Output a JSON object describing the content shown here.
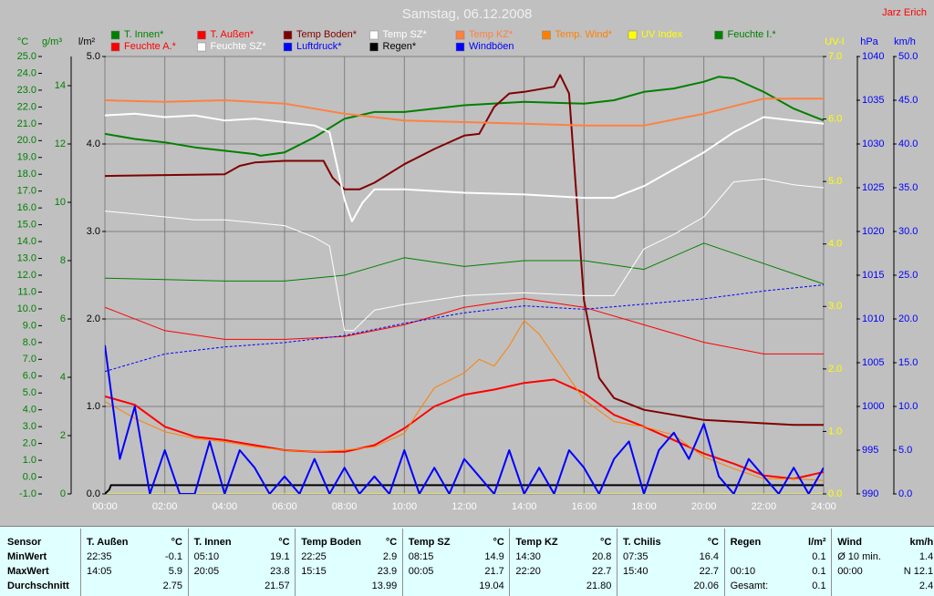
{
  "chart_data": {
    "type": "line",
    "title": "Samstag, 06.12.2008",
    "author": "Jarz Erich",
    "xlim": [
      0,
      24
    ],
    "xticks": [
      {
        "value": 0,
        "label": "00:00"
      },
      {
        "value": 2,
        "label": "02:00"
      },
      {
        "value": 4,
        "label": "04:00"
      },
      {
        "value": 6,
        "label": "06:00"
      },
      {
        "value": 8,
        "label": "08:00"
      },
      {
        "value": 10,
        "label": "10:00"
      },
      {
        "value": 12,
        "label": "12:00"
      },
      {
        "value": 14,
        "label": "14:00"
      },
      {
        "value": 16,
        "label": "16:00"
      },
      {
        "value": 18,
        "label": "18:00"
      },
      {
        "value": 20,
        "label": "20:00"
      },
      {
        "value": 22,
        "label": "22:00"
      },
      {
        "value": 24,
        "label": "24:00"
      }
    ],
    "grid": true,
    "y_axes": [
      {
        "label": "°C",
        "color": "#008000",
        "lim": [
          -1,
          25
        ],
        "ticks": [
          {
            "value": -1,
            "label": "-1.0"
          },
          {
            "value": 0,
            "label": "0.0"
          },
          {
            "value": 1,
            "label": "1.0"
          },
          {
            "value": 2,
            "label": "2.0"
          },
          {
            "value": 3,
            "label": "3.0"
          },
          {
            "value": 4,
            "label": "4.0"
          },
          {
            "value": 5,
            "label": "5.0"
          },
          {
            "value": 6,
            "label": "6.0"
          },
          {
            "value": 7,
            "label": "7.0"
          },
          {
            "value": 8,
            "label": "8.0"
          },
          {
            "value": 9,
            "label": "9.0"
          },
          {
            "value": 10,
            "label": "10.0"
          },
          {
            "value": 11,
            "label": "11.0"
          },
          {
            "value": 12,
            "label": "12.0"
          },
          {
            "value": 13,
            "label": "13.0"
          },
          {
            "value": 14,
            "label": "14.0"
          },
          {
            "value": 15,
            "label": "15.0"
          },
          {
            "value": 16,
            "label": "16.0"
          },
          {
            "value": 17,
            "label": "17.0"
          },
          {
            "value": 18,
            "label": "18.0"
          },
          {
            "value": 19,
            "label": "19.0"
          },
          {
            "value": 20,
            "label": "20.0"
          },
          {
            "value": 21,
            "label": "21.0"
          },
          {
            "value": 22,
            "label": "22.0"
          },
          {
            "value": 23,
            "label": "23.0"
          },
          {
            "value": 24,
            "label": "24.0"
          },
          {
            "value": 25,
            "label": "25.0"
          }
        ]
      },
      {
        "label": "g/m³",
        "color": "#008000",
        "lim": [
          0,
          15
        ],
        "ticks": [
          0,
          2,
          4,
          6,
          8,
          10,
          12,
          14
        ]
      },
      {
        "label": "l/m²",
        "color": "#000000",
        "lim": [
          0,
          5
        ],
        "grid": true,
        "ticks": [
          {
            "value": 0,
            "label": "0.0"
          },
          {
            "value": 1,
            "label": "1.0"
          },
          {
            "value": 2,
            "label": "2.0"
          },
          {
            "value": 3,
            "label": "3.0"
          },
          {
            "value": 4,
            "label": "4.0"
          },
          {
            "value": 5,
            "label": "5.0"
          }
        ]
      },
      {
        "label": "UV-I",
        "color": "#ffff00",
        "lim": [
          0,
          7
        ],
        "ticks": [
          {
            "value": 0,
            "label": "0.0"
          },
          {
            "value": 1,
            "label": "1.0"
          },
          {
            "value": 2,
            "label": "2.0"
          },
          {
            "value": 3,
            "label": "3.0"
          },
          {
            "value": 4,
            "label": "4.0"
          },
          {
            "value": 5,
            "label": "5.0"
          },
          {
            "value": 6,
            "label": "6.0"
          },
          {
            "value": 7,
            "label": "7.0"
          }
        ]
      },
      {
        "label": "hPa",
        "color": "#0000ff",
        "lim": [
          990,
          1040
        ],
        "ticks": [
          990,
          995,
          1000,
          1005,
          1010,
          1015,
          1020,
          1025,
          1030,
          1035,
          1040
        ]
      },
      {
        "label": "km/h",
        "color": "#0000ff",
        "lim": [
          0,
          50
        ],
        "ticks": [
          {
            "value": 0,
            "label": "0.0"
          },
          {
            "value": 5,
            "label": "5.0"
          },
          {
            "value": 10,
            "label": "10.0"
          },
          {
            "value": 15,
            "label": "15.0"
          },
          {
            "value": 20,
            "label": "20.0"
          },
          {
            "value": 25,
            "label": "25.0"
          },
          {
            "value": 30,
            "label": "30.0"
          },
          {
            "value": 35,
            "label": "35.0"
          },
          {
            "value": 40,
            "label": "40.0"
          },
          {
            "value": 45,
            "label": "45.0"
          },
          {
            "value": 50,
            "label": "50.0"
          }
        ]
      }
    ],
    "series": [
      {
        "name": "T. Innen*",
        "color": "#008000",
        "axis": "°C",
        "thick": true,
        "x": [
          0,
          1,
          2,
          3,
          4,
          5,
          5.2,
          6,
          7,
          8,
          9,
          10,
          12,
          14,
          16,
          17,
          18,
          19,
          20,
          20.5,
          21,
          22,
          23,
          24
        ],
        "values": [
          20.4,
          20.1,
          19.9,
          19.6,
          19.4,
          19.2,
          19.1,
          19.3,
          20.2,
          21.3,
          21.7,
          21.7,
          22.1,
          22.3,
          22.2,
          22.4,
          22.9,
          23.1,
          23.5,
          23.8,
          23.7,
          22.9,
          21.9,
          21.2
        ]
      },
      {
        "name": "T. Außen*",
        "color": "#ff0000",
        "axis": "°C",
        "thick": true,
        "x": [
          0,
          1,
          2,
          3,
          4,
          5,
          6,
          7,
          8,
          9,
          10,
          11,
          12,
          13,
          14,
          15,
          16,
          17,
          18,
          19,
          20,
          21,
          22,
          23,
          24
        ],
        "values": [
          4.8,
          4.3,
          3.0,
          2.4,
          2.2,
          1.9,
          1.6,
          1.5,
          1.5,
          1.9,
          2.9,
          4.2,
          4.9,
          5.2,
          5.6,
          5.8,
          5.0,
          3.7,
          3.0,
          2.2,
          1.4,
          0.8,
          0.1,
          -0.1,
          0.3
        ]
      },
      {
        "name": "Temp Boden*",
        "color": "#800000",
        "axis": "°C",
        "thick": true,
        "x": [
          0,
          4,
          4.5,
          5,
          6,
          7.3,
          7.6,
          8,
          8.5,
          9,
          10,
          11,
          12,
          12.5,
          13,
          13.5,
          14,
          15,
          15.2,
          15.5,
          16,
          16.5,
          17,
          18,
          19,
          20,
          21,
          22,
          23,
          24
        ],
        "values": [
          17.9,
          18.0,
          18.5,
          18.7,
          18.8,
          18.8,
          17.8,
          17.1,
          17.1,
          17.5,
          18.6,
          19.5,
          20.3,
          20.4,
          22.0,
          22.8,
          22.9,
          23.2,
          23.9,
          22.8,
          10.5,
          5.9,
          4.7,
          4.0,
          3.7,
          3.4,
          3.3,
          3.2,
          3.1,
          3.1
        ]
      },
      {
        "name": "Temp SZ*",
        "color": "#ffffff",
        "axis": "°C",
        "thick": true,
        "x": [
          0,
          1,
          2,
          3,
          4,
          5,
          6,
          7,
          7.5,
          8,
          8.25,
          8.6,
          9,
          10,
          12,
          14,
          16,
          17,
          18,
          19,
          20,
          21,
          22,
          23,
          24
        ],
        "values": [
          21.5,
          21.6,
          21.4,
          21.5,
          21.2,
          21.3,
          21.1,
          20.9,
          20.5,
          16.5,
          15.2,
          16.3,
          17.1,
          17.1,
          16.9,
          16.8,
          16.6,
          16.6,
          17.3,
          18.3,
          19.3,
          20.5,
          21.4,
          21.2,
          21.0
        ]
      },
      {
        "name": "Temp KZ*",
        "color": "#ff8040",
        "axis": "°C",
        "thick": true,
        "x": [
          0,
          2,
          4,
          6,
          8,
          10,
          12,
          14,
          16,
          18,
          20,
          22,
          24
        ],
        "values": [
          22.4,
          22.3,
          22.4,
          22.2,
          21.6,
          21.2,
          21.1,
          21.0,
          20.9,
          20.9,
          21.6,
          22.5,
          22.5
        ]
      },
      {
        "name": "Temp. Wind*",
        "color": "#ff8000",
        "axis": "°C",
        "thick": false,
        "x": [
          0,
          1,
          2,
          3,
          4,
          5,
          6,
          7,
          8,
          9,
          10,
          10.5,
          11,
          12,
          12.5,
          13,
          13.5,
          14,
          14.5,
          15,
          16,
          17,
          18,
          19,
          20,
          21,
          22,
          23,
          24
        ],
        "values": [
          4.5,
          3.5,
          2.7,
          2.3,
          2.1,
          1.8,
          1.6,
          1.5,
          1.6,
          1.8,
          2.6,
          4.0,
          5.3,
          6.2,
          7.0,
          6.6,
          7.8,
          9.3,
          8.5,
          7.2,
          4.6,
          3.3,
          3.0,
          2.5,
          1.2,
          0.5,
          -0.1,
          -0.1,
          -0.2
        ]
      },
      {
        "name": "UV Index",
        "color": "#ffff00",
        "axis": "UV-I",
        "thick": false,
        "x": [
          0,
          24
        ],
        "values": [
          0,
          0
        ]
      },
      {
        "name": "Feuchte I.*",
        "color": "#008000",
        "axis": "g/m³",
        "thick": false,
        "x": [
          0,
          2,
          4,
          6,
          8,
          10,
          12,
          14,
          16,
          18,
          20,
          22,
          24
        ],
        "values": [
          7.4,
          7.35,
          7.3,
          7.3,
          7.5,
          8.1,
          7.8,
          8.0,
          8.0,
          7.7,
          8.6,
          7.9,
          7.2
        ]
      },
      {
        "name": "Feuchte A.*",
        "color": "#ff0000",
        "axis": "g/m³",
        "thick": false,
        "x": [
          0,
          2,
          4,
          6,
          8,
          10,
          12,
          14,
          16,
          18,
          20,
          22,
          24
        ],
        "values": [
          6.4,
          5.6,
          5.3,
          5.3,
          5.4,
          5.8,
          6.4,
          6.7,
          6.4,
          5.8,
          5.2,
          4.8,
          4.8
        ]
      },
      {
        "name": "Feuchte SZ*",
        "color": "#ffffff",
        "axis": "g/m³",
        "thick": false,
        "x": [
          0,
          1,
          2,
          3,
          4,
          5,
          6,
          7,
          7.5,
          8,
          8.3,
          9,
          10,
          12,
          14,
          16,
          17,
          18,
          19,
          20,
          21,
          22,
          23,
          24
        ],
        "values": [
          9.7,
          9.6,
          9.5,
          9.4,
          9.4,
          9.3,
          9.2,
          8.8,
          8.5,
          5.6,
          5.6,
          6.3,
          6.5,
          6.8,
          6.9,
          6.8,
          6.8,
          8.4,
          8.9,
          9.5,
          10.7,
          10.8,
          10.6,
          10.5
        ]
      },
      {
        "name": "Luftdruck*",
        "color": "#0000ff",
        "axis": "hPa",
        "thick": false,
        "dash": true,
        "x": [
          0,
          2,
          4,
          6,
          8,
          10,
          12,
          14,
          16,
          18,
          20,
          22,
          24
        ],
        "values": [
          1004.0,
          1006.0,
          1006.8,
          1007.3,
          1008.1,
          1009.5,
          1010.7,
          1011.5,
          1011.1,
          1011.7,
          1012.3,
          1013.2,
          1013.9
        ]
      },
      {
        "name": "Regen*",
        "color": "#000000",
        "axis": "l/m²",
        "thick": true,
        "x": [
          0,
          0.15,
          0.2,
          24
        ],
        "values": [
          0,
          0.05,
          0.1,
          0.1
        ]
      },
      {
        "name": "Windböen",
        "color": "#0000ff",
        "axis": "km/h",
        "thick": true,
        "x": [
          0,
          0.5,
          1,
          1.5,
          2,
          2.5,
          3,
          3.5,
          4,
          4.5,
          5,
          5.5,
          6,
          6.5,
          7,
          7.5,
          8,
          8.5,
          9,
          9.5,
          10,
          10.5,
          11,
          11.5,
          12,
          12.5,
          13,
          13.5,
          14,
          14.5,
          15,
          15.5,
          16,
          16.5,
          17,
          17.5,
          18,
          18.5,
          19,
          19.5,
          20,
          20.5,
          21,
          21.5,
          22,
          22.5,
          23,
          23.5,
          24
        ],
        "values": [
          17,
          4,
          10,
          0,
          5,
          0,
          0,
          6,
          0,
          5,
          3,
          0,
          2,
          0,
          4,
          0,
          3,
          0,
          2,
          0,
          5,
          0,
          3,
          0,
          4,
          2,
          0,
          5,
          0,
          3,
          0,
          5,
          3,
          0,
          4,
          6,
          0,
          5,
          7,
          4,
          8,
          2,
          0,
          4,
          2,
          0,
          3,
          0,
          3
        ]
      }
    ]
  },
  "table": {
    "header": "Sensor",
    "row_labels": [
      "MinWert",
      "MaxWert",
      "Durchschnitt"
    ],
    "columns": [
      {
        "name": "T. Außen",
        "unit": "°C",
        "cells": [
          {
            "time": "22:35",
            "value": "-0.1"
          },
          {
            "time": "14:05",
            "value": "5.9"
          },
          {
            "value": "2.75"
          }
        ]
      },
      {
        "name": "T. Innen",
        "unit": "°C",
        "cells": [
          {
            "time": "05:10",
            "value": "19.1"
          },
          {
            "time": "20:05",
            "value": "23.8"
          },
          {
            "value": "21.57"
          }
        ]
      },
      {
        "name": "Temp Boden",
        "unit": "°C",
        "cells": [
          {
            "time": "22:25",
            "value": "2.9"
          },
          {
            "time": "15:15",
            "value": "23.9"
          },
          {
            "value": "13.99"
          }
        ]
      },
      {
        "name": "Temp SZ",
        "unit": "°C",
        "cells": [
          {
            "time": "08:15",
            "value": "14.9"
          },
          {
            "time": "00:05",
            "value": "21.7"
          },
          {
            "value": "19.04"
          }
        ]
      },
      {
        "name": "Temp KZ",
        "unit": "°C",
        "cells": [
          {
            "time": "14:30",
            "value": "20.8"
          },
          {
            "time": "22:20",
            "value": "22.7"
          },
          {
            "value": "21.80"
          }
        ]
      },
      {
        "name": "T. Chilis",
        "unit": "°C",
        "cells": [
          {
            "time": "07:35",
            "value": "16.4"
          },
          {
            "time": "15:40",
            "value": "22.7"
          },
          {
            "value": "20.06"
          }
        ]
      },
      {
        "name": "Regen",
        "unit": "l/m²",
        "cells": [
          {
            "value": "0.1"
          },
          {
            "time": "00:10",
            "value": "0.1"
          },
          {
            "time": "Gesamt:",
            "value": "0.1"
          }
        ]
      },
      {
        "name": "Wind",
        "unit": "km/h",
        "cells": [
          {
            "time": "Ø 10 min.",
            "value": "1.4"
          },
          {
            "time": "00:00",
            "value": "N 12.1"
          },
          {
            "value": "2.4"
          }
        ]
      }
    ]
  }
}
